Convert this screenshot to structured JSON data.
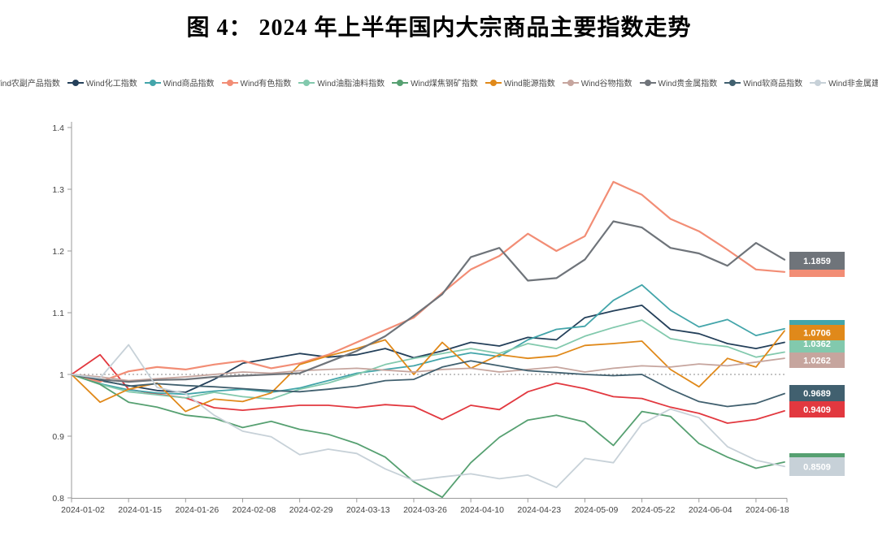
{
  "title": "图 4： 2024 年上半年国内大宗商品主要指数走势",
  "chart_data": {
    "type": "line",
    "title": "图 4： 2024 年上半年国内大宗商品主要指数走势",
    "xlabel": "",
    "ylabel": "",
    "ylim": [
      0.8,
      1.4
    ],
    "y_ticks": [
      "1.4",
      "1.3",
      "1.2",
      "1.1",
      "1",
      "0.9",
      "0.8"
    ],
    "y_tick_values": [
      1.4,
      1.3,
      1.2,
      1.1,
      1.0,
      0.9,
      0.8
    ],
    "baseline_value": 1.0,
    "baseline_style": "dotted",
    "grid": "off",
    "legend_position": "top",
    "x_tick_labels": [
      "2024-01-02",
      "2024-01-15",
      "2024-01-26",
      "2024-02-08",
      "2024-02-29",
      "2024-03-13",
      "2024-03-26",
      "2024-04-10",
      "2024-04-23",
      "2024-05-09",
      "2024-05-22",
      "2024-06-04",
      "2024-06-18"
    ],
    "x_sample_dates": [
      "2024-01-02",
      "2024-01-09",
      "2024-01-15",
      "2024-01-22",
      "2024-01-26",
      "2024-02-02",
      "2024-02-08",
      "2024-02-21",
      "2024-02-29",
      "2024-03-06",
      "2024-03-13",
      "2024-03-19",
      "2024-03-26",
      "2024-04-02",
      "2024-04-10",
      "2024-04-16",
      "2024-04-23",
      "2024-05-02",
      "2024-05-09",
      "2024-05-15",
      "2024-05-22",
      "2024-05-28",
      "2024-06-04",
      "2024-06-11",
      "2024-06-18",
      "2024-06-28"
    ],
    "series": [
      {
        "name": "Wind农副产品指数",
        "color": "#e2383f",
        "end_label": "0.9409",
        "end_label_shown": true,
        "values": [
          1.0,
          1.032,
          0.976,
          0.968,
          0.962,
          0.946,
          0.942,
          0.946,
          0.95,
          0.95,
          0.946,
          0.951,
          0.948,
          0.927,
          0.95,
          0.943,
          0.972,
          0.986,
          0.977,
          0.964,
          0.961,
          0.947,
          0.937,
          0.921,
          0.927,
          0.9409
        ]
      },
      {
        "name": "Wind化工指数",
        "color": "#24405a",
        "end_label": null,
        "end_label_shown": false,
        "values": [
          1.0,
          0.99,
          0.982,
          0.974,
          0.971,
          0.992,
          1.018,
          1.026,
          1.034,
          1.028,
          1.032,
          1.042,
          1.027,
          1.038,
          1.052,
          1.046,
          1.06,
          1.056,
          1.092,
          1.103,
          1.112,
          1.073,
          1.066,
          1.05,
          1.042,
          1.052
        ]
      },
      {
        "name": "Wind商品指数",
        "color": "#43a5aa",
        "end_label": null,
        "end_label_shown": false,
        "values": [
          1.0,
          0.985,
          0.975,
          0.97,
          0.968,
          0.973,
          0.976,
          0.971,
          0.978,
          0.99,
          1.002,
          1.008,
          1.014,
          1.026,
          1.035,
          1.029,
          1.056,
          1.073,
          1.078,
          1.12,
          1.145,
          1.104,
          1.077,
          1.089,
          1.063,
          1.074
        ]
      },
      {
        "name": "Wind有色指数",
        "color": "#f28d75",
        "end_label": null,
        "end_label_shown": false,
        "values": [
          1.0,
          0.988,
          1.005,
          1.012,
          1.008,
          1.016,
          1.022,
          1.01,
          1.018,
          1.032,
          1.052,
          1.072,
          1.092,
          1.132,
          1.17,
          1.192,
          1.228,
          1.2,
          1.224,
          1.312,
          1.291,
          1.252,
          1.232,
          1.202,
          1.17,
          1.166
        ]
      },
      {
        "name": "Wind油脂油料指数",
        "color": "#82c9ad",
        "end_label": "1.0362",
        "end_label_shown": true,
        "values": [
          1.0,
          0.984,
          0.972,
          0.967,
          0.962,
          0.971,
          0.964,
          0.96,
          0.976,
          0.986,
          1.0,
          1.016,
          1.026,
          1.034,
          1.042,
          1.034,
          1.05,
          1.042,
          1.062,
          1.076,
          1.088,
          1.058,
          1.05,
          1.045,
          1.028,
          1.0362
        ]
      },
      {
        "name": "Wind煤焦钢矿指数",
        "color": "#56a071",
        "end_label": null,
        "end_label_shown": false,
        "values": [
          1.0,
          0.984,
          0.955,
          0.947,
          0.934,
          0.929,
          0.914,
          0.924,
          0.911,
          0.903,
          0.888,
          0.866,
          0.826,
          0.801,
          0.857,
          0.898,
          0.926,
          0.934,
          0.923,
          0.885,
          0.94,
          0.932,
          0.888,
          0.866,
          0.848,
          0.858
        ]
      },
      {
        "name": "Wind能源指数",
        "color": "#e0891a",
        "end_label": "1.0706",
        "end_label_shown": true,
        "values": [
          1.0,
          0.955,
          0.976,
          0.986,
          0.94,
          0.96,
          0.956,
          0.97,
          1.016,
          1.03,
          1.042,
          1.056,
          1.0,
          1.052,
          1.01,
          1.032,
          1.026,
          1.03,
          1.047,
          1.05,
          1.054,
          1.008,
          0.98,
          1.026,
          1.012,
          1.0706
        ]
      },
      {
        "name": "Wind谷物指数",
        "color": "#c6a59e",
        "end_label": "1.0262",
        "end_label_shown": true,
        "values": [
          1.0,
          0.996,
          0.99,
          0.993,
          0.996,
          1.0,
          1.004,
          1.002,
          1.006,
          1.008,
          1.01,
          1.007,
          1.004,
          1.008,
          1.01,
          1.004,
          1.008,
          1.012,
          1.004,
          1.01,
          1.014,
          1.012,
          1.017,
          1.014,
          1.02,
          1.0262
        ]
      },
      {
        "name": "Wind贵金属指数",
        "color": "#6f747a",
        "end_label": "1.1859",
        "end_label_shown": true,
        "values": [
          1.0,
          0.992,
          0.988,
          0.991,
          0.992,
          0.996,
          0.998,
          1.0,
          1.002,
          1.02,
          1.038,
          1.062,
          1.095,
          1.13,
          1.19,
          1.205,
          1.152,
          1.156,
          1.186,
          1.248,
          1.238,
          1.205,
          1.196,
          1.176,
          1.213,
          1.1859
        ]
      },
      {
        "name": "Wind软商品指数",
        "color": "#41606f",
        "end_label": "0.9689",
        "end_label_shown": true,
        "values": [
          1.0,
          0.991,
          0.981,
          0.985,
          0.982,
          0.98,
          0.977,
          0.974,
          0.972,
          0.976,
          0.981,
          0.99,
          0.992,
          1.012,
          1.022,
          1.014,
          1.006,
          1.003,
          1.0,
          0.998,
          1.0,
          0.976,
          0.956,
          0.948,
          0.953,
          0.9689
        ]
      },
      {
        "name": "Wind非金属建材指数",
        "color": "#c7d1d8",
        "end_label": "0.8509",
        "end_label_shown": true,
        "values": [
          1.0,
          0.994,
          1.048,
          0.979,
          0.969,
          0.934,
          0.908,
          0.899,
          0.87,
          0.879,
          0.872,
          0.847,
          0.828,
          0.834,
          0.839,
          0.831,
          0.837,
          0.817,
          0.864,
          0.857,
          0.92,
          0.944,
          0.93,
          0.883,
          0.861,
          0.8509
        ]
      }
    ]
  }
}
